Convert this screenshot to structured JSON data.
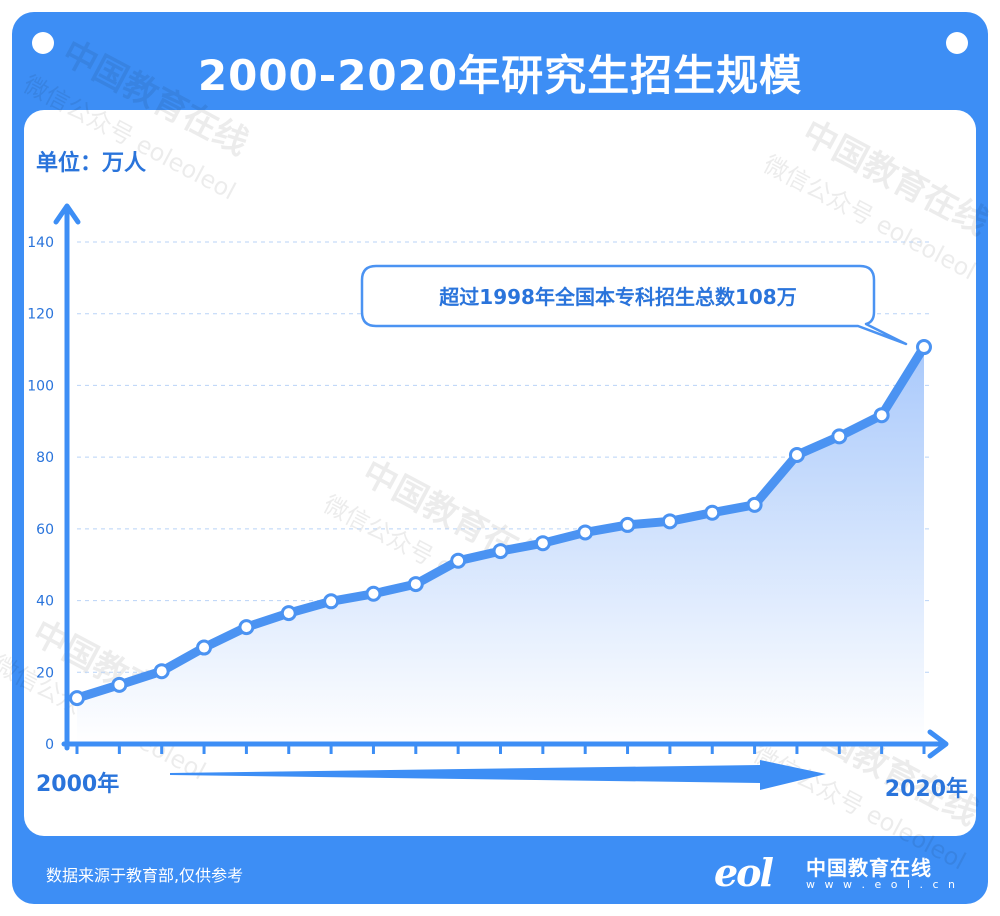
{
  "header": {
    "title": "2000-2020年研究生招生规模"
  },
  "footer": {
    "source": "数据来源于教育部,仅供参考",
    "logo_cn": "中国教育在线",
    "logo_url": "w w w . e o l . c n",
    "logo_mark": "eol"
  },
  "watermark": {
    "cn": "中国教育在线",
    "sub": "微信公众号 eoleoleol"
  },
  "chart_data": {
    "type": "area",
    "title": "2000-2020年研究生招生规模",
    "unit_label": "单位：万人",
    "x_start_label": "2000年",
    "x_end_label": "2020年",
    "x": [
      2000,
      2001,
      2002,
      2003,
      2004,
      2005,
      2006,
      2007,
      2008,
      2009,
      2010,
      2011,
      2012,
      2013,
      2014,
      2015,
      2016,
      2017,
      2018,
      2019,
      2020
    ],
    "values": [
      12.8,
      16.5,
      20.3,
      26.9,
      32.6,
      36.5,
      39.8,
      41.9,
      44.6,
      51.1,
      53.8,
      56.0,
      59.0,
      61.1,
      62.1,
      64.5,
      66.7,
      80.6,
      85.8,
      91.7,
      110.7
    ],
    "ylim": [
      0,
      140
    ],
    "yticks": [
      0,
      20,
      40,
      60,
      80,
      100,
      120,
      140
    ],
    "grid": true,
    "annotation": {
      "text": "超过1998年全国本专科招生总数108万",
      "x": 2020
    },
    "colors": {
      "accent": "#3d8ef5",
      "line": "#4b93f2",
      "fill_top": "#a9c9fb",
      "fill_bottom": "#ffffff"
    }
  }
}
